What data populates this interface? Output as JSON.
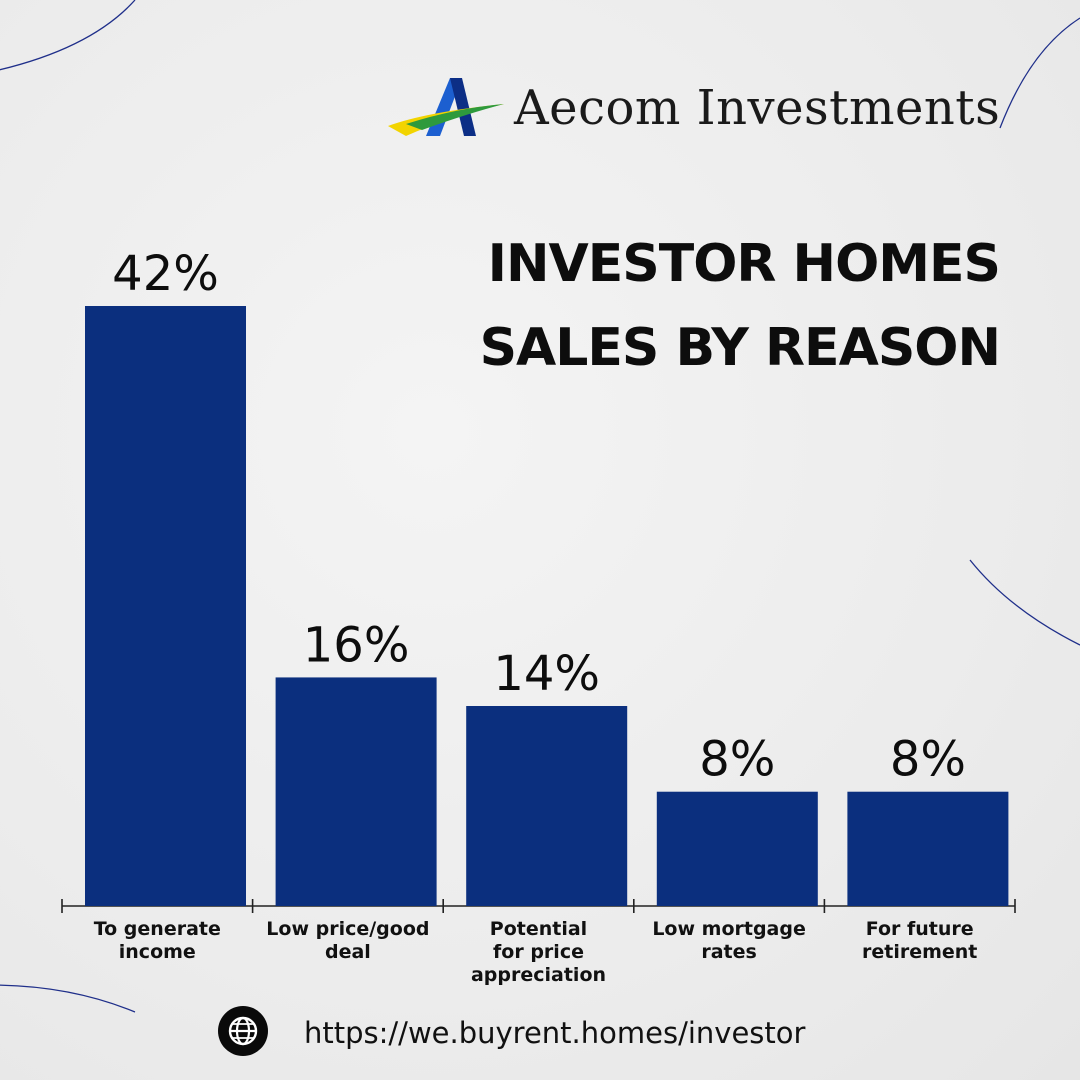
{
  "brand": {
    "name": "Aecom Investments",
    "logo_icon": "stylized-a-logo-icon"
  },
  "title": {
    "line1": "INVESTOR HOMES",
    "line2": "SALES BY REASON"
  },
  "colors": {
    "bar": "#0b2f7e",
    "text": "#111111",
    "accent_line": "#1f2f8a",
    "background": "#ececec"
  },
  "chart_data": {
    "type": "bar",
    "title": "INVESTOR HOMES SALES BY REASON",
    "categories": [
      "To generate income",
      "Low price/good deal",
      "Potential for price appreciation",
      "Low mortgage rates",
      "For future retirement"
    ],
    "category_lines": [
      [
        "To generate",
        "income"
      ],
      [
        "Low price/good",
        "deal"
      ],
      [
        "Potential",
        "for price",
        "appreciation"
      ],
      [
        "Low mortgage",
        "rates"
      ],
      [
        "For future",
        "retirement"
      ]
    ],
    "values": [
      42,
      16,
      14,
      8,
      8
    ],
    "value_labels": [
      "42%",
      "16%",
      "14%",
      "8%",
      "8%"
    ],
    "unit": "%",
    "ylim": [
      0,
      42
    ],
    "grid": false,
    "legend": "none"
  },
  "footer": {
    "url": "https://we.buyrent.homes/investor",
    "icon": "globe-icon"
  }
}
